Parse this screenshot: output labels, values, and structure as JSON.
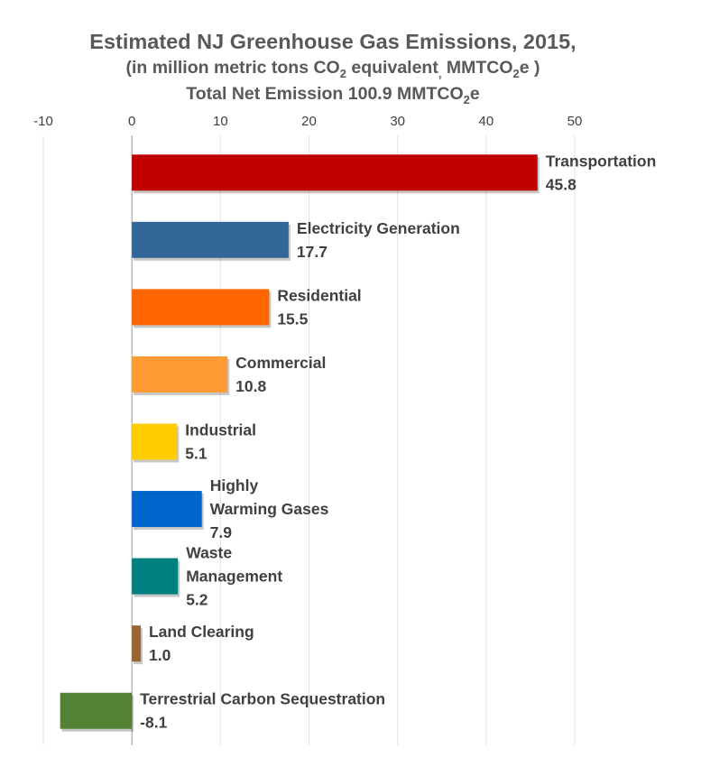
{
  "chart_data": {
    "type": "bar",
    "orientation": "horizontal",
    "title": "Estimated NJ Greenhouse Gas Emissions, 2015,",
    "subtitle_line1": {
      "pre": "(in million metric tons CO",
      "sub1": "2",
      "mid": " equivalent",
      "sub2": ",",
      "post": " MMTCO",
      "sub3": "2",
      "end": "e )"
    },
    "subtitle_line2": {
      "pre": "Total Net Emission 100.9 MMTCO",
      "sub": "2",
      "end": "e"
    },
    "xlim": [
      -10,
      50
    ],
    "xticks": [
      -10,
      0,
      10,
      20,
      30,
      40,
      50
    ],
    "xtick_labels": [
      "-10",
      "0",
      "10",
      "20",
      "30",
      "40",
      "50"
    ],
    "grid": true,
    "legend": "none",
    "categories": [
      "Transportation",
      "Electricity Generation",
      "Residential",
      "Commercial",
      "Industrial",
      "Highly Warming Gases",
      "Waste Management",
      "Land Clearing",
      "Terrestrial Carbon Sequestration"
    ],
    "label_lines": [
      [
        "Transportation"
      ],
      [
        "Electricity Generation"
      ],
      [
        "Residential"
      ],
      [
        "Commercial"
      ],
      [
        "Industrial"
      ],
      [
        "Highly",
        "Warming Gases"
      ],
      [
        "Waste",
        "Management"
      ],
      [
        "Land Clearing"
      ],
      [
        "Terrestrial Carbon Sequestration"
      ]
    ],
    "values": [
      45.8,
      17.7,
      15.5,
      10.8,
      5.1,
      7.9,
      5.2,
      1.0,
      -8.1
    ],
    "value_labels": [
      "45.8",
      "17.7",
      "15.5",
      "10.8",
      "5.1",
      "7.9",
      "5.2",
      "1.0",
      "-8.1"
    ],
    "colors": [
      "#C00000",
      "#336699",
      "#FF6600",
      "#FF9933",
      "#FFCC00",
      "#0066CC",
      "#008080",
      "#996633",
      "#548235"
    ]
  }
}
